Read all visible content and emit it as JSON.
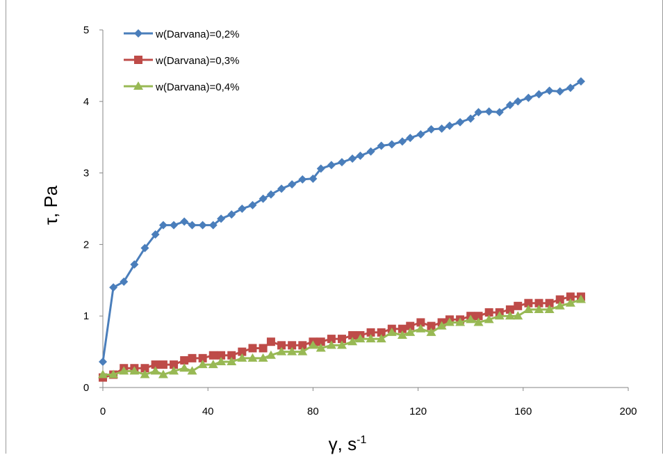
{
  "chart_data": {
    "type": "line",
    "xlabel": "γ, s",
    "xlabel_sup": "-1",
    "ylabel": "τ, Pa",
    "xlim": [
      0,
      200
    ],
    "ylim": [
      0,
      5
    ],
    "xticks": [
      "0",
      "40",
      "80",
      "120",
      "160",
      "200"
    ],
    "yticks": [
      "0",
      "1",
      "2",
      "3",
      "4",
      "5"
    ],
    "grid": false,
    "legend_position": "top-left",
    "series": [
      {
        "name": "w(Darvana)=0,2%",
        "color": "#4a7ebb",
        "marker": "diamond",
        "x": [
          0,
          4,
          8,
          12,
          16,
          20,
          23,
          27,
          31,
          34,
          38,
          42,
          45,
          49,
          53,
          57,
          61,
          64,
          68,
          72,
          76,
          80,
          83,
          87,
          91,
          95,
          98,
          102,
          106,
          110,
          114,
          117,
          121,
          125,
          129,
          132,
          136,
          140,
          143,
          147,
          151,
          155,
          158,
          162,
          166,
          170,
          174,
          178,
          182
        ],
        "y": [
          0.36,
          1.4,
          1.48,
          1.72,
          1.95,
          2.14,
          2.27,
          2.27,
          2.32,
          2.27,
          2.27,
          2.27,
          2.36,
          2.42,
          2.5,
          2.55,
          2.64,
          2.7,
          2.78,
          2.84,
          2.91,
          2.92,
          3.06,
          3.11,
          3.15,
          3.2,
          3.24,
          3.3,
          3.38,
          3.4,
          3.44,
          3.49,
          3.54,
          3.61,
          3.62,
          3.66,
          3.71,
          3.76,
          3.85,
          3.86,
          3.85,
          3.95,
          4.0,
          4.05,
          4.1,
          4.15,
          4.14,
          4.19,
          4.28
        ]
      },
      {
        "name": "w(Darvana)=0,3%",
        "color": "#be4b48",
        "marker": "square",
        "x": [
          0,
          4,
          8,
          12,
          16,
          20,
          23,
          27,
          31,
          34,
          38,
          42,
          45,
          49,
          53,
          57,
          61,
          64,
          68,
          72,
          76,
          80,
          83,
          87,
          91,
          95,
          98,
          102,
          106,
          110,
          114,
          117,
          121,
          125,
          129,
          132,
          136,
          140,
          143,
          147,
          151,
          155,
          158,
          162,
          166,
          170,
          174,
          178,
          182
        ],
        "y": [
          0.14,
          0.18,
          0.27,
          0.27,
          0.27,
          0.32,
          0.32,
          0.32,
          0.38,
          0.41,
          0.41,
          0.45,
          0.45,
          0.45,
          0.5,
          0.55,
          0.55,
          0.64,
          0.59,
          0.59,
          0.59,
          0.64,
          0.64,
          0.68,
          0.68,
          0.73,
          0.73,
          0.77,
          0.77,
          0.82,
          0.82,
          0.86,
          0.91,
          0.86,
          0.91,
          0.95,
          0.95,
          1.0,
          1.0,
          1.05,
          1.05,
          1.09,
          1.14,
          1.18,
          1.18,
          1.18,
          1.23,
          1.27,
          1.27
        ]
      },
      {
        "name": "w(Darvana)=0,4%",
        "color": "#98b954",
        "marker": "triangle",
        "x": [
          0,
          4,
          8,
          12,
          16,
          20,
          23,
          27,
          31,
          34,
          38,
          42,
          45,
          49,
          53,
          57,
          61,
          64,
          68,
          72,
          76,
          80,
          83,
          87,
          91,
          95,
          98,
          102,
          106,
          110,
          114,
          117,
          121,
          125,
          129,
          132,
          136,
          140,
          143,
          147,
          151,
          155,
          158,
          162,
          166,
          170,
          174,
          178,
          182
        ],
        "y": [
          0.18,
          0.18,
          0.23,
          0.23,
          0.18,
          0.23,
          0.18,
          0.23,
          0.27,
          0.23,
          0.32,
          0.32,
          0.36,
          0.36,
          0.41,
          0.41,
          0.41,
          0.45,
          0.5,
          0.5,
          0.5,
          0.59,
          0.55,
          0.59,
          0.59,
          0.64,
          0.68,
          0.68,
          0.68,
          0.77,
          0.73,
          0.77,
          0.82,
          0.77,
          0.86,
          0.91,
          0.91,
          0.95,
          0.91,
          0.95,
          1.0,
          1.0,
          1.0,
          1.09,
          1.09,
          1.09,
          1.14,
          1.18,
          1.23
        ]
      }
    ]
  }
}
